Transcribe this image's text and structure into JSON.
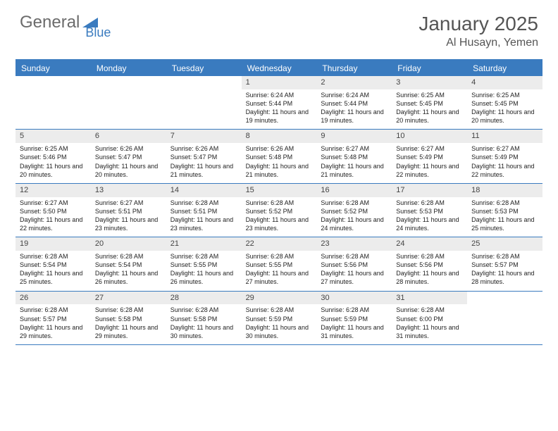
{
  "logo": {
    "part1": "General",
    "part2": "Blue"
  },
  "title": "January 2025",
  "location": "Al Husayn, Yemen",
  "colors": {
    "accent": "#3a7bbf",
    "header_text": "#555555",
    "logo_gray": "#6b6b6b",
    "cell_bg": "#ececec",
    "page_bg": "#ffffff"
  },
  "day_names": [
    "Sunday",
    "Monday",
    "Tuesday",
    "Wednesday",
    "Thursday",
    "Friday",
    "Saturday"
  ],
  "weeks": [
    [
      {
        "empty": true
      },
      {
        "empty": true
      },
      {
        "empty": true
      },
      {
        "day": "1",
        "sunrise": "6:24 AM",
        "sunset": "5:44 PM",
        "daylight_h": "11",
        "daylight_m": "19"
      },
      {
        "day": "2",
        "sunrise": "6:24 AM",
        "sunset": "5:44 PM",
        "daylight_h": "11",
        "daylight_m": "19"
      },
      {
        "day": "3",
        "sunrise": "6:25 AM",
        "sunset": "5:45 PM",
        "daylight_h": "11",
        "daylight_m": "20"
      },
      {
        "day": "4",
        "sunrise": "6:25 AM",
        "sunset": "5:45 PM",
        "daylight_h": "11",
        "daylight_m": "20"
      }
    ],
    [
      {
        "day": "5",
        "sunrise": "6:25 AM",
        "sunset": "5:46 PM",
        "daylight_h": "11",
        "daylight_m": "20"
      },
      {
        "day": "6",
        "sunrise": "6:26 AM",
        "sunset": "5:47 PM",
        "daylight_h": "11",
        "daylight_m": "20"
      },
      {
        "day": "7",
        "sunrise": "6:26 AM",
        "sunset": "5:47 PM",
        "daylight_h": "11",
        "daylight_m": "21"
      },
      {
        "day": "8",
        "sunrise": "6:26 AM",
        "sunset": "5:48 PM",
        "daylight_h": "11",
        "daylight_m": "21"
      },
      {
        "day": "9",
        "sunrise": "6:27 AM",
        "sunset": "5:48 PM",
        "daylight_h": "11",
        "daylight_m": "21"
      },
      {
        "day": "10",
        "sunrise": "6:27 AM",
        "sunset": "5:49 PM",
        "daylight_h": "11",
        "daylight_m": "22"
      },
      {
        "day": "11",
        "sunrise": "6:27 AM",
        "sunset": "5:49 PM",
        "daylight_h": "11",
        "daylight_m": "22"
      }
    ],
    [
      {
        "day": "12",
        "sunrise": "6:27 AM",
        "sunset": "5:50 PM",
        "daylight_h": "11",
        "daylight_m": "22"
      },
      {
        "day": "13",
        "sunrise": "6:27 AM",
        "sunset": "5:51 PM",
        "daylight_h": "11",
        "daylight_m": "23"
      },
      {
        "day": "14",
        "sunrise": "6:28 AM",
        "sunset": "5:51 PM",
        "daylight_h": "11",
        "daylight_m": "23"
      },
      {
        "day": "15",
        "sunrise": "6:28 AM",
        "sunset": "5:52 PM",
        "daylight_h": "11",
        "daylight_m": "23"
      },
      {
        "day": "16",
        "sunrise": "6:28 AM",
        "sunset": "5:52 PM",
        "daylight_h": "11",
        "daylight_m": "24"
      },
      {
        "day": "17",
        "sunrise": "6:28 AM",
        "sunset": "5:53 PM",
        "daylight_h": "11",
        "daylight_m": "24"
      },
      {
        "day": "18",
        "sunrise": "6:28 AM",
        "sunset": "5:53 PM",
        "daylight_h": "11",
        "daylight_m": "25"
      }
    ],
    [
      {
        "day": "19",
        "sunrise": "6:28 AM",
        "sunset": "5:54 PM",
        "daylight_h": "11",
        "daylight_m": "25"
      },
      {
        "day": "20",
        "sunrise": "6:28 AM",
        "sunset": "5:54 PM",
        "daylight_h": "11",
        "daylight_m": "26"
      },
      {
        "day": "21",
        "sunrise": "6:28 AM",
        "sunset": "5:55 PM",
        "daylight_h": "11",
        "daylight_m": "26"
      },
      {
        "day": "22",
        "sunrise": "6:28 AM",
        "sunset": "5:55 PM",
        "daylight_h": "11",
        "daylight_m": "27"
      },
      {
        "day": "23",
        "sunrise": "6:28 AM",
        "sunset": "5:56 PM",
        "daylight_h": "11",
        "daylight_m": "27"
      },
      {
        "day": "24",
        "sunrise": "6:28 AM",
        "sunset": "5:56 PM",
        "daylight_h": "11",
        "daylight_m": "28"
      },
      {
        "day": "25",
        "sunrise": "6:28 AM",
        "sunset": "5:57 PM",
        "daylight_h": "11",
        "daylight_m": "28"
      }
    ],
    [
      {
        "day": "26",
        "sunrise": "6:28 AM",
        "sunset": "5:57 PM",
        "daylight_h": "11",
        "daylight_m": "29"
      },
      {
        "day": "27",
        "sunrise": "6:28 AM",
        "sunset": "5:58 PM",
        "daylight_h": "11",
        "daylight_m": "29"
      },
      {
        "day": "28",
        "sunrise": "6:28 AM",
        "sunset": "5:58 PM",
        "daylight_h": "11",
        "daylight_m": "30"
      },
      {
        "day": "29",
        "sunrise": "6:28 AM",
        "sunset": "5:59 PM",
        "daylight_h": "11",
        "daylight_m": "30"
      },
      {
        "day": "30",
        "sunrise": "6:28 AM",
        "sunset": "5:59 PM",
        "daylight_h": "11",
        "daylight_m": "31"
      },
      {
        "day": "31",
        "sunrise": "6:28 AM",
        "sunset": "6:00 PM",
        "daylight_h": "11",
        "daylight_m": "31"
      },
      {
        "empty": true
      }
    ]
  ],
  "labels": {
    "sunrise": "Sunrise: ",
    "sunset": "Sunset: ",
    "daylight_prefix": "Daylight: ",
    "daylight_mid": " hours and ",
    "daylight_suffix": " minutes."
  }
}
